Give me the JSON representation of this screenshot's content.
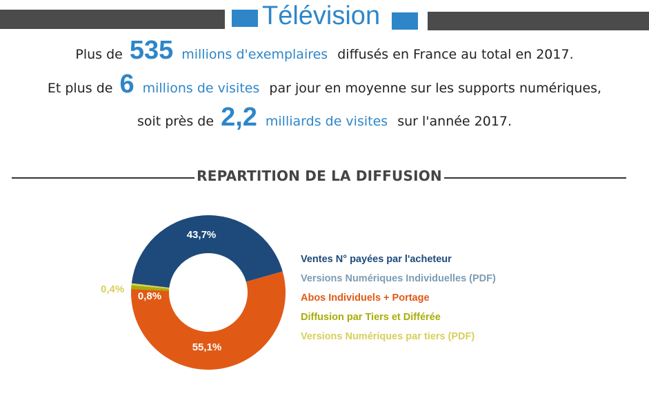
{
  "header": {
    "title": "Télévision"
  },
  "stats": {
    "line1": {
      "prefix": "Plus de",
      "number": "535",
      "highlight": "millions d'exemplaires",
      "suffix": "diffusés en France au total en 2017."
    },
    "line2": {
      "prefix": "Et plus de",
      "number": "6",
      "highlight": "millions de visites",
      "suffix": "par jour en moyenne sur les supports numériques,"
    },
    "line3": {
      "prefix": "soit près de",
      "number": "2,2",
      "highlight": "milliards de visites",
      "suffix": "sur l'année 2017."
    }
  },
  "section": {
    "title": "REPARTITION DE LA DIFFUSION"
  },
  "colors": {
    "accent": "#2e86c9",
    "banner": "#4b4b4b"
  },
  "chart_data": {
    "type": "pie",
    "variant": "donut",
    "legend_position": "right",
    "series": [
      {
        "name": "Ventes N° payées par l'acheteur",
        "value": 43.7,
        "label": "43,7%",
        "color": "#1d4a7a"
      },
      {
        "name": "Versions Numériques Individuelles (PDF)",
        "value": 0.0,
        "label": "",
        "color": "#7d9cb5"
      },
      {
        "name": "Abos Individuels + Portage",
        "value": 55.1,
        "label": "55,1%",
        "color": "#e05a16"
      },
      {
        "name": "Diffusion par Tiers et Différée",
        "value": 0.8,
        "label": "0,8%",
        "color": "#a8ad08"
      },
      {
        "name": "Versions Numériques par tiers (PDF)",
        "value": 0.4,
        "label": "0,4%",
        "color": "#d8cf5a"
      }
    ]
  }
}
